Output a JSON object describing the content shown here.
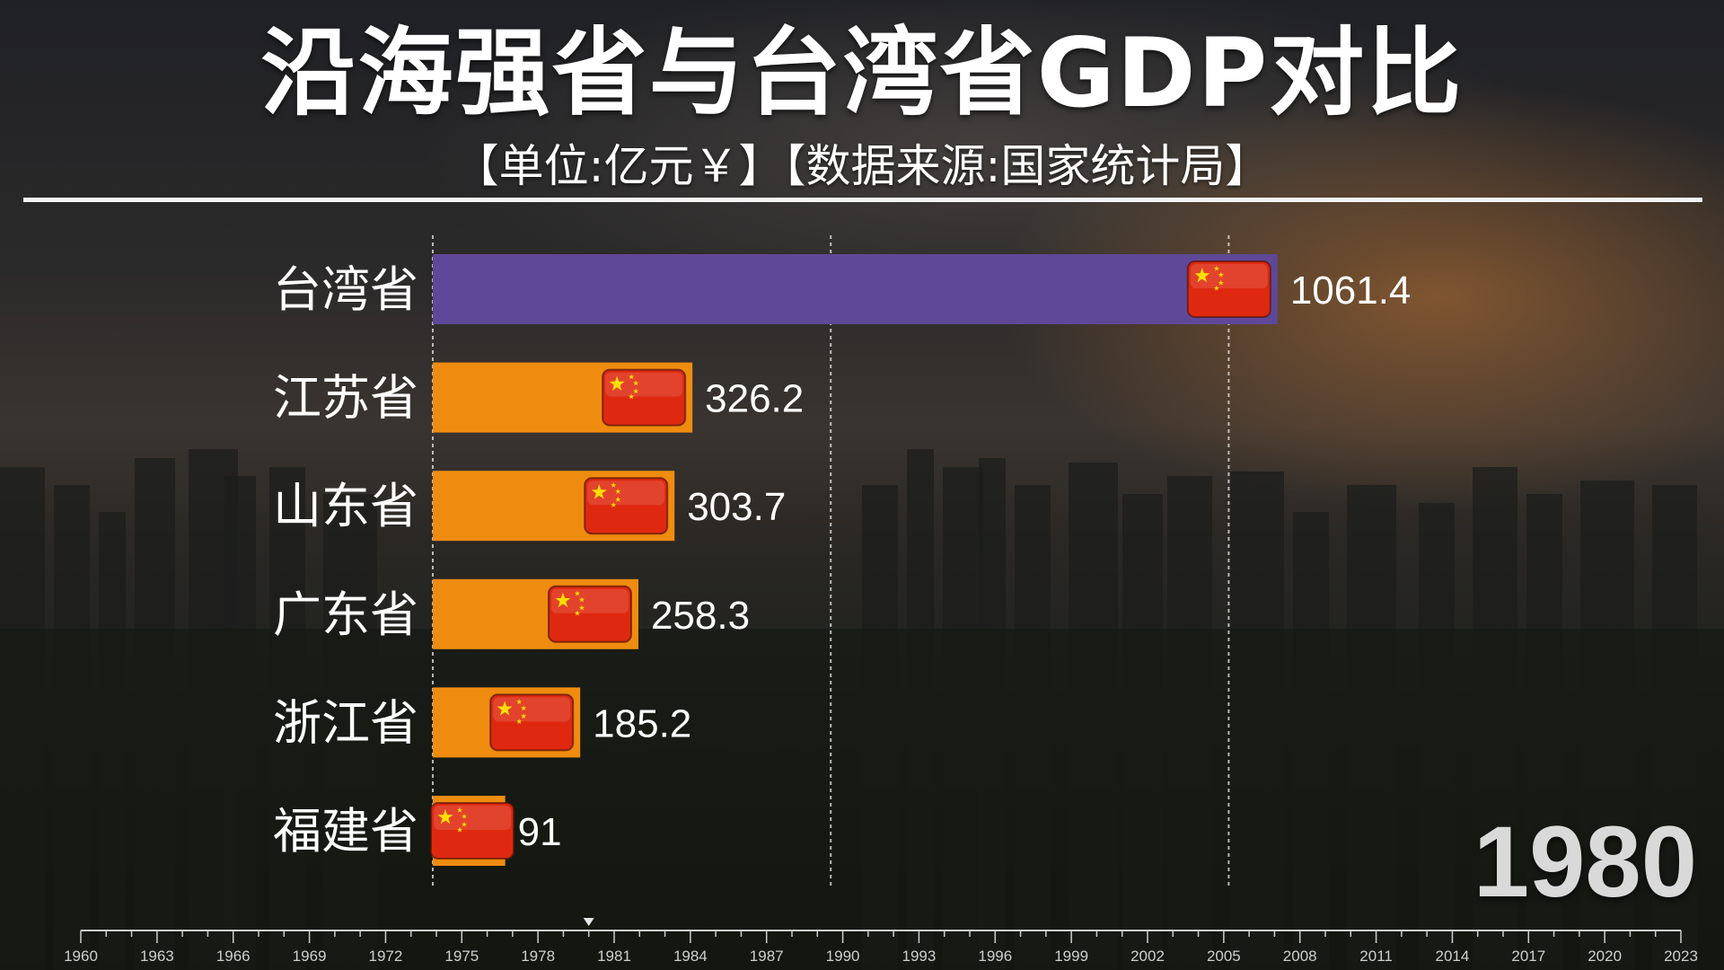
{
  "header": {
    "title": "沿海强省与台湾省GDP对比",
    "subtitle": "【单位:亿元￥】【数据来源:国家统计局】"
  },
  "current_year": "1980",
  "colors": {
    "highlight_bar": "#5f4897",
    "bar": "#ef8c10",
    "flag_red": "#de2910",
    "flag_star": "#ffde00"
  },
  "chart_data": {
    "type": "bar",
    "orientation": "horizontal",
    "categories": [
      "台湾省",
      "江苏省",
      "山东省",
      "广东省",
      "浙江省",
      "福建省"
    ],
    "values": [
      1061.4,
      326.2,
      303.7,
      258.3,
      185.2,
      91
    ],
    "value_labels": [
      "1061.4",
      "326.2",
      "303.7",
      "258.3",
      "185.2",
      "91"
    ],
    "bar_colors": [
      "#5f4897",
      "#ef8c10",
      "#ef8c10",
      "#ef8c10",
      "#ef8c10",
      "#ef8c10"
    ],
    "xlim": [
      0,
      1100
    ],
    "gridlines": [
      0,
      500,
      1000
    ],
    "bar_icon": "china-flag-icon",
    "timeline": {
      "ticks": [
        "1960",
        "1963",
        "1966",
        "1969",
        "1972",
        "1975",
        "1978",
        "1981",
        "1984",
        "1987",
        "1990",
        "1993",
        "1996",
        "1999",
        "2002",
        "2005",
        "2008",
        "2011",
        "2014",
        "2017",
        "2020",
        "2023"
      ],
      "start": 1960,
      "end": 2023,
      "current": 1980
    }
  }
}
